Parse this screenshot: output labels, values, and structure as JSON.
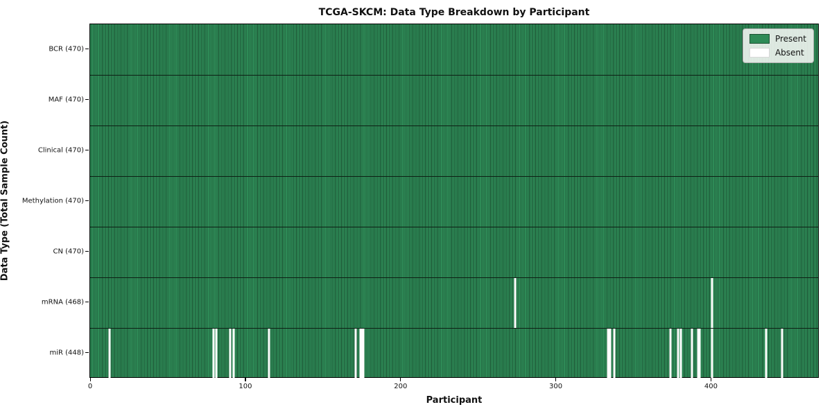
{
  "chart_data": {
    "type": "heatmap",
    "title": "TCGA-SKCM: Data Type Breakdown by Participant",
    "xlabel": "Participant",
    "ylabel": "Data Type (Total Sample Count)",
    "n_participants": 470,
    "x_ticks": [
      0,
      100,
      200,
      300,
      400
    ],
    "legend_position": "upper right",
    "legend": [
      {
        "label": "Present",
        "color": "#2e8b57"
      },
      {
        "label": "Absent",
        "color": "#ffffff"
      }
    ],
    "colors": {
      "present": "#2e8b57",
      "bar_edge": "#1c5233",
      "absent": "#ffffff",
      "axes_border": "#000000"
    },
    "rows": [
      {
        "label": "BCR (470)",
        "data_type": "BCR",
        "total_samples": 470,
        "absent_participants": []
      },
      {
        "label": "MAF (470)",
        "data_type": "MAF",
        "total_samples": 470,
        "absent_participants": []
      },
      {
        "label": "Clinical (470)",
        "data_type": "Clinical",
        "total_samples": 470,
        "absent_participants": []
      },
      {
        "label": "Methylation (470)",
        "data_type": "Methylation",
        "total_samples": 470,
        "absent_participants": []
      },
      {
        "label": "CN (470)",
        "data_type": "CN",
        "total_samples": 470,
        "absent_participants": []
      },
      {
        "label": "mRNA (468)",
        "data_type": "mRNA",
        "total_samples": 468,
        "absent_participants": [
          274,
          401
        ]
      },
      {
        "label": "miR (448)",
        "data_type": "miR",
        "total_samples": 448,
        "absent_participants": [
          12,
          79,
          81,
          90,
          92,
          115,
          171,
          174,
          175,
          176,
          334,
          335,
          338,
          374,
          379,
          381,
          388,
          392,
          393,
          401,
          436,
          446
        ]
      }
    ]
  }
}
